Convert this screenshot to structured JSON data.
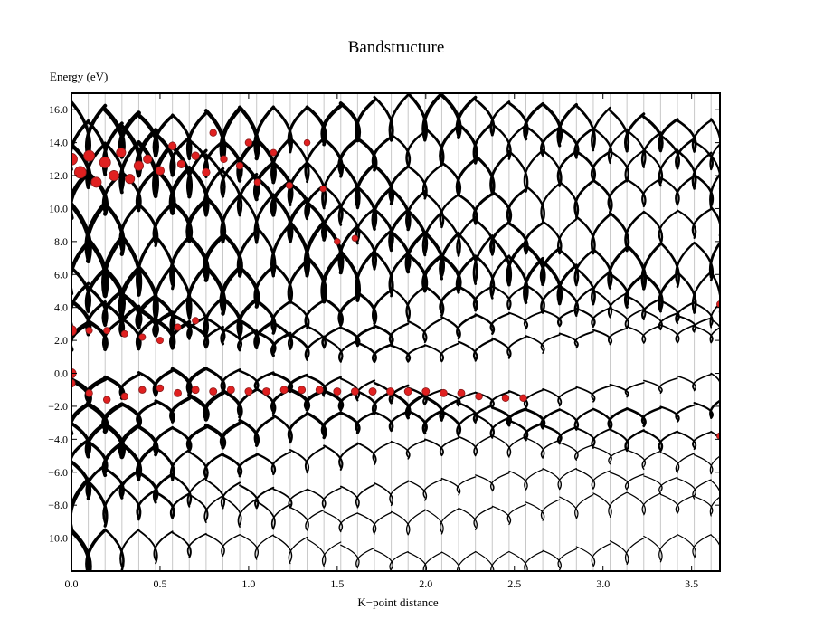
{
  "chart_data": {
    "type": "line",
    "title": "Bandstructure",
    "xlabel": "K−point distance",
    "ylabel": "Energy (eV)",
    "xlim": [
      0.0,
      3.66
    ],
    "ylim": [
      -12.0,
      17.0
    ],
    "x_ticks": [
      0.0,
      0.5,
      1.0,
      1.5,
      2.0,
      2.5,
      3.0,
      3.5
    ],
    "x_tick_labels": [
      "0.0",
      "0.5",
      "1.0",
      "1.5",
      "2.0",
      "2.5",
      "3.0",
      "3.5"
    ],
    "y_ticks": [
      -10,
      -8,
      -6,
      -4,
      -2,
      0,
      2,
      4,
      6,
      8,
      10,
      12,
      14,
      16
    ],
    "y_tick_labels": [
      "−10.0",
      "−8.0",
      "−6.0",
      "−4.0",
      "−2.0",
      "0.0",
      "2.0",
      "4.0",
      "6.0",
      "8.0",
      "10.0",
      "12.0",
      "14.0",
      "16.0"
    ],
    "high_symmetry_lines": [
      0.0,
      0.095,
      0.19,
      0.285,
      0.38,
      0.475,
      0.57,
      0.665,
      0.76,
      0.855,
      0.95,
      1.045,
      1.14,
      1.235,
      1.33,
      1.425,
      1.52,
      1.615,
      1.71,
      1.805,
      1.9,
      1.995,
      2.09,
      2.185,
      2.28,
      2.375,
      2.47,
      2.565,
      2.66,
      2.755,
      2.85,
      2.945,
      3.04,
      3.135,
      3.23,
      3.325,
      3.42,
      3.515,
      3.61
    ],
    "grid": false,
    "legend": "none",
    "colors": {
      "band": "#000000",
      "projection": "#e02020",
      "projection_line": "#8b1a1a",
      "segment_line": "#c8c8c8",
      "frame": "#000000"
    },
    "series": [
      {
        "energy": -11.0,
        "amp": 1.5,
        "decay": 3.0
      },
      {
        "energy": -8.5,
        "amp": 1.4,
        "decay": 2.0
      },
      {
        "energy": -7.0,
        "amp": 1.2,
        "decay": 1.5
      },
      {
        "energy": -5.0,
        "amp": 1.1,
        "decay": 1.0
      },
      {
        "energy": -3.5,
        "amp": 0.9,
        "decay": 0.4
      },
      {
        "energy": -2.2,
        "amp": 0.8,
        "decay": 0.3
      },
      {
        "energy": -1.0,
        "amp": 0.8,
        "decay": 0.6
      },
      {
        "energy": 1.8,
        "amp": 0.9,
        "decay": 0.6
      },
      {
        "energy": 2.8,
        "amp": 0.9,
        "decay": 0.5
      },
      {
        "energy": 4.0,
        "amp": 1.2,
        "decay": 0.4
      },
      {
        "energy": 5.5,
        "amp": 1.5,
        "decay": 0.2
      },
      {
        "energy": 7.0,
        "amp": 1.6,
        "decay": 0.2
      },
      {
        "energy": 8.8,
        "amp": 1.5,
        "decay": 0.3
      },
      {
        "energy": 10.5,
        "amp": 1.4,
        "decay": 0.3
      },
      {
        "energy": 12.0,
        "amp": 1.5,
        "decay": 0.3
      },
      {
        "energy": 13.5,
        "amp": 1.4,
        "decay": 0.3
      },
      {
        "energy": 15.0,
        "amp": 1.5,
        "decay": 0.2
      }
    ],
    "projection_points": [
      {
        "x": 0.0,
        "y": 13.0,
        "weight": 1.0
      },
      {
        "x": 0.0,
        "y": 2.6,
        "weight": 0.8
      },
      {
        "x": 0.0,
        "y": 0.0,
        "weight": 0.7
      },
      {
        "x": 0.05,
        "y": 12.2,
        "weight": 1.0
      },
      {
        "x": 0.1,
        "y": 13.2,
        "weight": 0.9
      },
      {
        "x": 0.14,
        "y": 11.6,
        "weight": 0.8
      },
      {
        "x": 0.19,
        "y": 12.8,
        "weight": 0.9
      },
      {
        "x": 0.24,
        "y": 12.0,
        "weight": 0.8
      },
      {
        "x": 0.28,
        "y": 13.4,
        "weight": 0.7
      },
      {
        "x": 0.33,
        "y": 11.8,
        "weight": 0.7
      },
      {
        "x": 0.38,
        "y": 12.6,
        "weight": 0.7
      },
      {
        "x": 0.43,
        "y": 13.0,
        "weight": 0.6
      },
      {
        "x": 0.5,
        "y": 12.3,
        "weight": 0.6
      },
      {
        "x": 0.57,
        "y": 13.8,
        "weight": 0.5
      },
      {
        "x": 0.62,
        "y": 12.7,
        "weight": 0.5
      },
      {
        "x": 0.7,
        "y": 13.2,
        "weight": 0.5
      },
      {
        "x": 0.76,
        "y": 12.2,
        "weight": 0.5
      },
      {
        "x": 0.8,
        "y": 14.6,
        "weight": 0.4
      },
      {
        "x": 0.86,
        "y": 13.0,
        "weight": 0.4
      },
      {
        "x": 0.95,
        "y": 12.6,
        "weight": 0.4
      },
      {
        "x": 1.0,
        "y": 14.0,
        "weight": 0.4
      },
      {
        "x": 1.05,
        "y": 11.6,
        "weight": 0.35
      },
      {
        "x": 1.14,
        "y": 13.4,
        "weight": 0.35
      },
      {
        "x": 1.23,
        "y": 11.4,
        "weight": 0.35
      },
      {
        "x": 1.33,
        "y": 14.0,
        "weight": 0.3
      },
      {
        "x": 1.42,
        "y": 11.2,
        "weight": 0.3
      },
      {
        "x": 1.5,
        "y": 8.0,
        "weight": 0.3
      },
      {
        "x": 1.6,
        "y": 8.2,
        "weight": 0.3
      },
      {
        "x": 0.0,
        "y": -0.6,
        "weight": 0.5
      },
      {
        "x": 0.1,
        "y": -1.2,
        "weight": 0.4
      },
      {
        "x": 0.2,
        "y": -1.6,
        "weight": 0.4
      },
      {
        "x": 0.3,
        "y": -1.4,
        "weight": 0.4
      },
      {
        "x": 0.4,
        "y": -1.0,
        "weight": 0.4
      },
      {
        "x": 0.5,
        "y": -0.9,
        "weight": 0.4
      },
      {
        "x": 0.6,
        "y": -1.2,
        "weight": 0.45
      },
      {
        "x": 0.7,
        "y": -1.0,
        "weight": 0.45
      },
      {
        "x": 0.8,
        "y": -1.1,
        "weight": 0.45
      },
      {
        "x": 0.9,
        "y": -1.0,
        "weight": 0.45
      },
      {
        "x": 1.0,
        "y": -1.1,
        "weight": 0.45
      },
      {
        "x": 1.1,
        "y": -1.1,
        "weight": 0.45
      },
      {
        "x": 1.2,
        "y": -1.0,
        "weight": 0.45
      },
      {
        "x": 1.3,
        "y": -1.0,
        "weight": 0.45
      },
      {
        "x": 1.4,
        "y": -1.0,
        "weight": 0.45
      },
      {
        "x": 1.5,
        "y": -1.1,
        "weight": 0.45
      },
      {
        "x": 1.6,
        "y": -1.1,
        "weight": 0.45
      },
      {
        "x": 1.7,
        "y": -1.1,
        "weight": 0.45
      },
      {
        "x": 1.8,
        "y": -1.1,
        "weight": 0.45
      },
      {
        "x": 1.9,
        "y": -1.1,
        "weight": 0.45
      },
      {
        "x": 2.0,
        "y": -1.1,
        "weight": 0.45
      },
      {
        "x": 2.1,
        "y": -1.2,
        "weight": 0.45
      },
      {
        "x": 2.2,
        "y": -1.2,
        "weight": 0.45
      },
      {
        "x": 2.3,
        "y": -1.4,
        "weight": 0.4
      },
      {
        "x": 2.45,
        "y": -1.5,
        "weight": 0.4
      },
      {
        "x": 2.55,
        "y": -1.5,
        "weight": 0.4
      },
      {
        "x": 0.1,
        "y": 2.6,
        "weight": 0.35
      },
      {
        "x": 0.2,
        "y": 2.6,
        "weight": 0.35
      },
      {
        "x": 0.3,
        "y": 2.4,
        "weight": 0.35
      },
      {
        "x": 0.4,
        "y": 2.2,
        "weight": 0.35
      },
      {
        "x": 0.5,
        "y": 2.0,
        "weight": 0.35
      },
      {
        "x": 0.6,
        "y": 2.8,
        "weight": 0.35
      },
      {
        "x": 0.7,
        "y": 3.2,
        "weight": 0.35
      },
      {
        "x": 3.66,
        "y": 4.2,
        "weight": 0.35
      },
      {
        "x": 3.66,
        "y": -3.8,
        "weight": 0.35
      }
    ]
  }
}
